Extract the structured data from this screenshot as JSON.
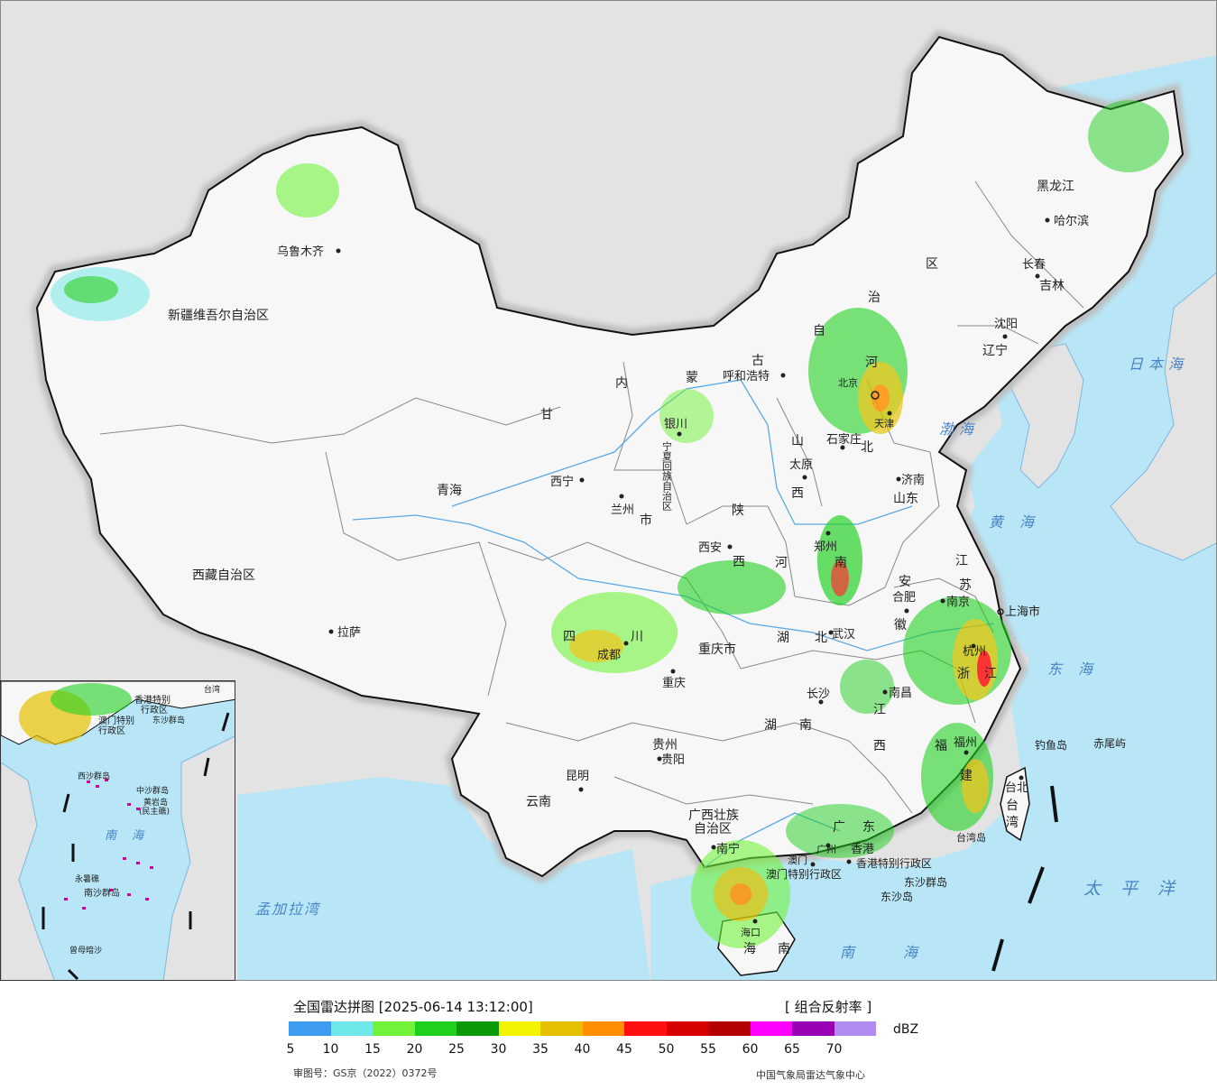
{
  "map": {
    "cities": [
      {
        "name": "乌鲁木齐"
      },
      {
        "name": "拉萨"
      },
      {
        "name": "西宁"
      },
      {
        "name": "兰州"
      },
      {
        "name": "银川"
      },
      {
        "name": "呼和浩特"
      },
      {
        "name": "北京"
      },
      {
        "name": "天津"
      },
      {
        "name": "石家庄"
      },
      {
        "name": "太原"
      },
      {
        "name": "济南"
      },
      {
        "name": "郑州"
      },
      {
        "name": "西安"
      },
      {
        "name": "成都"
      },
      {
        "name": "重庆"
      },
      {
        "name": "武汉"
      },
      {
        "name": "合肥"
      },
      {
        "name": "南京"
      },
      {
        "name": "上海市"
      },
      {
        "name": "杭州"
      },
      {
        "name": "长沙"
      },
      {
        "name": "南昌"
      },
      {
        "name": "福州"
      },
      {
        "name": "贵阳"
      },
      {
        "name": "昆明"
      },
      {
        "name": "南宁"
      },
      {
        "name": "广州"
      },
      {
        "name": "香港"
      },
      {
        "name": "澳门"
      },
      {
        "name": "海口"
      },
      {
        "name": "台北"
      },
      {
        "name": "沈阳"
      },
      {
        "name": "长春"
      },
      {
        "name": "哈尔滨"
      }
    ],
    "provinces": [
      {
        "name": "新疆维吾尔自治区"
      },
      {
        "name": "西藏自治区"
      },
      {
        "name": "青海"
      },
      {
        "name": "甘"
      },
      {
        "name": "内"
      },
      {
        "name": "蒙"
      },
      {
        "name": "古"
      },
      {
        "name": "自"
      },
      {
        "name": "治"
      },
      {
        "name": "区"
      },
      {
        "name": "黑龙江"
      },
      {
        "name": "吉林"
      },
      {
        "name": "辽宁"
      },
      {
        "name": "河"
      },
      {
        "name": "北"
      },
      {
        "name": "山"
      },
      {
        "name": "西"
      },
      {
        "name": "山东"
      },
      {
        "name": "陕"
      },
      {
        "name": "西"
      },
      {
        "name": "河"
      },
      {
        "name": "南"
      },
      {
        "name": "四"
      },
      {
        "name": "川"
      },
      {
        "name": "重庆市"
      },
      {
        "name": "湖"
      },
      {
        "name": "北"
      },
      {
        "name": "湖"
      },
      {
        "name": "南"
      },
      {
        "name": "贵州"
      },
      {
        "name": "云南"
      },
      {
        "name": "广西壮族"
      },
      {
        "name": "自治区"
      },
      {
        "name": "广"
      },
      {
        "name": "东"
      },
      {
        "name": "江"
      },
      {
        "name": "西"
      },
      {
        "name": "福"
      },
      {
        "name": "建"
      },
      {
        "name": "浙"
      },
      {
        "name": "江"
      },
      {
        "name": "江"
      },
      {
        "name": "苏"
      },
      {
        "name": "安"
      },
      {
        "name": "徽"
      },
      {
        "name": "海"
      },
      {
        "name": "南"
      },
      {
        "name": "台"
      },
      {
        "name": "湾"
      },
      {
        "name": "宁夏回族自治区"
      },
      {
        "name": "市"
      },
      {
        "name": "香港特别行政区"
      },
      {
        "name": "澳门特别行政区"
      }
    ],
    "seas": [
      {
        "name": "日本海"
      },
      {
        "name": "渤海"
      },
      {
        "name": "黄海"
      },
      {
        "name": "东海"
      },
      {
        "name": "太平洋"
      },
      {
        "name": "南海"
      },
      {
        "name": "孟加拉湾"
      }
    ],
    "islands": [
      {
        "name": "钓鱼岛"
      },
      {
        "name": "赤尾屿"
      },
      {
        "name": "台湾岛"
      },
      {
        "name": "东沙群岛"
      },
      {
        "name": "东沙岛"
      }
    ]
  },
  "inset": {
    "labels": [
      {
        "name": "香港特别"
      },
      {
        "name": "行政区"
      },
      {
        "name": "澳门特别"
      },
      {
        "name": "行政区"
      },
      {
        "name": "东沙群岛"
      },
      {
        "name": "台湾"
      },
      {
        "name": "西沙群岛"
      },
      {
        "name": "中沙群岛"
      },
      {
        "name": "黄岩岛"
      },
      {
        "name": "(民主礁)"
      },
      {
        "name": "南"
      },
      {
        "name": "海"
      },
      {
        "name": "永暑礁"
      },
      {
        "name": "南沙群岛"
      },
      {
        "name": "曾母暗沙"
      }
    ]
  },
  "legend": {
    "title": "全国雷达拼图 [2025-06-14 13:12:00]",
    "product": "[ 组合反射率 ]",
    "unit": "dBZ",
    "ticks": [
      "5",
      "10",
      "15",
      "20",
      "25",
      "30",
      "35",
      "40",
      "45",
      "50",
      "55",
      "60",
      "65",
      "70"
    ],
    "colors": [
      "#3d9bf0",
      "#6ee8e8",
      "#72f23a",
      "#1fd01f",
      "#0a9a0a",
      "#f4f400",
      "#e6c000",
      "#ff8f00",
      "#ff1010",
      "#d60000",
      "#b40000",
      "#ff00ff",
      "#9a00b4",
      "#b08cf0"
    ],
    "approval": "审图号：GS京（2022）0372号",
    "agency": "中国气象局雷达气象中心"
  }
}
